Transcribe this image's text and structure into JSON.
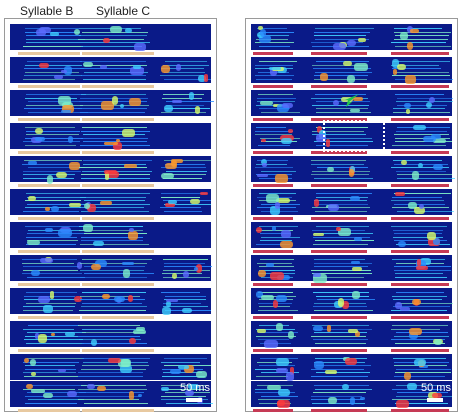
{
  "labels": {
    "syllable_b": "Syllable B",
    "syllable_c": "Syllable C"
  },
  "scale_bars": {
    "left": "50 ms",
    "right": "50 ms"
  },
  "colors": {
    "background": "#0a1a88",
    "syllable_b_bar": "#e8c9a0",
    "syllable_c_bar": "#e8c9a0",
    "right_bar": "#c63a55",
    "highlight": "#ffffff",
    "arrow": "#22c24a"
  },
  "icons": {
    "arrow": "green-arrow-icon",
    "highlight": "dotted-box"
  }
}
